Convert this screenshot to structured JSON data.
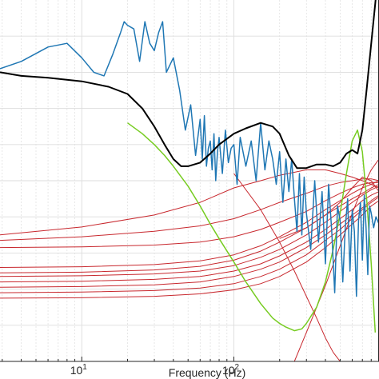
{
  "chart_data": {
    "type": "line",
    "title": "",
    "xlabel": "Frequency (Hz)",
    "ylabel": "",
    "x_scale": "log",
    "xlim": [
      2.9,
      900
    ],
    "ylim": [
      0,
      10
    ],
    "grid": true,
    "legend": "none",
    "x_ticks": [
      {
        "value": 10,
        "base": "10",
        "exp": "1"
      },
      {
        "value": 100,
        "base": "10",
        "exp": "2"
      }
    ],
    "colors": {
      "measured": "#1f77b4",
      "model": "#000000",
      "green": "#77cc22",
      "red": "#c8282e",
      "grid": "#dddddd",
      "axis": "#262626"
    },
    "series": [
      {
        "role": "measured",
        "x": [
          2.9,
          4,
          6,
          8,
          10,
          12,
          14,
          16,
          18,
          19,
          20,
          22,
          24,
          26,
          28,
          30,
          32,
          34,
          36,
          40,
          44,
          48,
          52,
          56,
          60,
          62,
          64,
          66,
          68,
          70,
          72,
          74,
          76,
          78,
          80,
          84,
          88,
          92,
          96,
          100,
          105,
          110,
          120,
          130,
          140,
          150,
          160,
          170,
          180,
          190,
          200,
          210,
          220,
          230,
          240,
          250,
          260,
          270,
          280,
          290,
          300,
          320,
          340,
          360,
          380,
          400,
          420,
          440,
          460,
          480,
          500,
          520,
          540,
          560,
          580,
          600,
          620,
          640,
          660,
          680,
          700,
          720,
          740,
          760,
          780,
          800,
          830,
          860,
          900
        ],
        "y": [
          8.1,
          8.3,
          8.7,
          8.8,
          8.4,
          8.0,
          7.9,
          8.5,
          9.1,
          9.4,
          9.3,
          9.2,
          8.3,
          9.4,
          8.8,
          8.6,
          9.1,
          9.4,
          8.0,
          8.4,
          7.5,
          6.4,
          7.1,
          5.7,
          6.7,
          5.6,
          6.8,
          5.4,
          5.9,
          6.1,
          5.3,
          6.3,
          5.0,
          5.8,
          6.2,
          5.2,
          6.4,
          5.5,
          5.9,
          6.0,
          4.9,
          6.2,
          5.4,
          6.1,
          5.0,
          6.6,
          5.3,
          6.1,
          5.6,
          4.9,
          5.8,
          4.4,
          5.6,
          4.7,
          5.6,
          4.5,
          3.6,
          5.2,
          3.5,
          5.1,
          4.1,
          3.1,
          5.0,
          3.3,
          4.7,
          2.7,
          4.9,
          3.6,
          1.9,
          4.3,
          3.9,
          2.2,
          3.7,
          4.5,
          2.5,
          4.2,
          3.6,
          1.8,
          3.9,
          4.4,
          2.8,
          4.6,
          3.7,
          2.4,
          4.3,
          4.1,
          3.7,
          4.0,
          3.8
        ]
      },
      {
        "role": "model",
        "x": [
          2.9,
          4,
          6,
          10,
          15,
          20,
          25,
          30,
          35,
          40,
          45,
          50,
          60,
          70,
          80,
          100,
          120,
          150,
          180,
          200,
          230,
          260,
          300,
          350,
          400,
          450,
          500,
          550,
          600,
          650,
          700,
          750,
          800,
          850,
          900
        ],
        "y": [
          8.0,
          7.9,
          7.85,
          7.75,
          7.6,
          7.4,
          7.0,
          6.5,
          6.0,
          5.6,
          5.4,
          5.4,
          5.5,
          5.75,
          6.0,
          6.3,
          6.45,
          6.6,
          6.5,
          6.3,
          5.7,
          5.35,
          5.35,
          5.45,
          5.45,
          5.4,
          5.5,
          5.75,
          5.85,
          5.75,
          6.4,
          7.6,
          8.8,
          9.9,
          11
        ]
      },
      {
        "role": "green",
        "x": [
          20,
          25,
          30,
          35,
          40,
          50,
          60,
          70,
          80,
          100,
          120,
          150,
          180,
          200,
          220,
          250,
          280,
          300,
          350,
          400,
          450,
          500,
          550,
          600,
          650,
          700,
          750,
          800,
          850
        ],
        "y": [
          6.6,
          6.3,
          6.0,
          5.7,
          5.4,
          4.85,
          4.3,
          3.8,
          3.4,
          2.75,
          2.2,
          1.6,
          1.2,
          1.05,
          0.95,
          0.85,
          0.9,
          1.05,
          1.5,
          2.2,
          3.1,
          4.1,
          5.2,
          6.1,
          6.4,
          5.8,
          4.4,
          2.7,
          0.8
        ]
      },
      {
        "role": "red",
        "x": [
          2.9,
          10,
          30,
          60,
          100,
          150,
          200,
          300,
          400,
          500,
          600,
          700,
          800,
          900
        ],
        "y": [
          3.5,
          3.72,
          4.05,
          4.4,
          4.8,
          5.0,
          5.15,
          5.3,
          5.3,
          5.2,
          5.1,
          5.0,
          4.9,
          4.8
        ]
      },
      {
        "role": "red",
        "x": [
          2.9,
          10,
          30,
          60,
          100,
          150,
          200,
          300,
          400,
          500,
          600,
          700,
          800,
          900
        ],
        "y": [
          3.35,
          3.45,
          3.6,
          3.75,
          3.95,
          4.2,
          4.4,
          4.65,
          4.85,
          4.95,
          5.0,
          5.05,
          5.05,
          5.0
        ]
      },
      {
        "role": "red",
        "x": [
          2.9,
          10,
          30,
          60,
          100,
          150,
          200,
          300,
          400,
          500,
          600,
          700,
          800,
          900
        ],
        "y": [
          3.15,
          3.17,
          3.22,
          3.3,
          3.45,
          3.65,
          3.85,
          4.15,
          4.45,
          4.65,
          4.8,
          4.9,
          4.95,
          4.95
        ]
      },
      {
        "role": "red",
        "x": [
          2.9,
          10,
          30,
          60,
          100,
          150,
          200,
          300,
          400,
          500,
          600,
          700,
          800,
          900
        ],
        "y": [
          2.6,
          2.62,
          2.68,
          2.78,
          2.95,
          3.2,
          3.45,
          3.85,
          4.2,
          4.45,
          4.65,
          4.8,
          4.9,
          5.0
        ]
      },
      {
        "role": "red",
        "x": [
          2.9,
          10,
          30,
          60,
          100,
          150,
          200,
          300,
          400,
          500,
          600,
          700,
          800,
          900
        ],
        "y": [
          2.45,
          2.47,
          2.53,
          2.63,
          2.8,
          3.05,
          3.3,
          3.7,
          4.05,
          4.3,
          4.5,
          4.65,
          4.8,
          4.9
        ]
      },
      {
        "role": "red",
        "x": [
          2.9,
          10,
          30,
          60,
          100,
          150,
          200,
          300,
          400,
          500,
          600,
          700,
          800,
          900
        ],
        "y": [
          2.35,
          2.37,
          2.42,
          2.5,
          2.65,
          2.88,
          3.1,
          3.5,
          3.85,
          4.15,
          4.4,
          4.6,
          4.75,
          4.85
        ]
      },
      {
        "role": "red",
        "x": [
          2.9,
          10,
          30,
          60,
          100,
          150,
          200,
          300,
          400,
          500,
          600,
          700,
          800,
          900
        ],
        "y": [
          2.2,
          2.22,
          2.27,
          2.35,
          2.5,
          2.7,
          2.92,
          3.3,
          3.65,
          3.95,
          4.2,
          4.45,
          4.6,
          4.7
        ]
      },
      {
        "role": "red",
        "x": [
          2.9,
          10,
          30,
          60,
          100,
          150,
          200,
          300,
          400,
          500,
          600,
          700,
          800,
          900
        ],
        "y": [
          2.05,
          2.07,
          2.12,
          2.2,
          2.35,
          2.55,
          2.75,
          3.15,
          3.5,
          3.8,
          4.05,
          4.25,
          4.45,
          4.6
        ]
      },
      {
        "role": "red",
        "x": [
          2.9,
          10,
          30,
          60,
          100,
          150,
          200,
          300,
          400,
          500,
          600,
          700,
          800,
          900
        ],
        "y": [
          1.9,
          1.92,
          1.96,
          2.03,
          2.15,
          2.35,
          2.55,
          2.95,
          3.35,
          3.65,
          3.95,
          4.2,
          4.4,
          4.55
        ]
      },
      {
        "role": "red",
        "x": [
          2.9,
          10,
          30,
          60,
          100,
          150,
          200,
          300,
          400,
          500,
          600,
          700,
          800,
          900
        ],
        "y": [
          1.75,
          1.76,
          1.8,
          1.87,
          1.98,
          2.15,
          2.35,
          2.75,
          3.15,
          3.5,
          3.8,
          4.05,
          4.3,
          4.45
        ]
      },
      {
        "role": "red",
        "x": [
          100,
          150,
          200,
          250,
          300,
          350,
          400,
          450,
          500
        ],
        "y": [
          5.2,
          4.2,
          3.3,
          2.5,
          1.8,
          1.2,
          0.65,
          0.25,
          0.0
        ]
      },
      {
        "role": "red",
        "x": [
          250,
          300,
          400,
          500,
          600,
          700,
          800,
          900
        ],
        "y": [
          0.0,
          0.8,
          2.1,
          3.2,
          4.1,
          4.8,
          5.3,
          5.6
        ]
      },
      {
        "role": "red",
        "x": [
          200,
          300,
          400,
          500,
          600,
          700,
          800,
          900
        ],
        "y": [
          3.4,
          3.7,
          4.05,
          4.4,
          4.8,
          5.1,
          5.0,
          4.7
        ]
      }
    ]
  }
}
